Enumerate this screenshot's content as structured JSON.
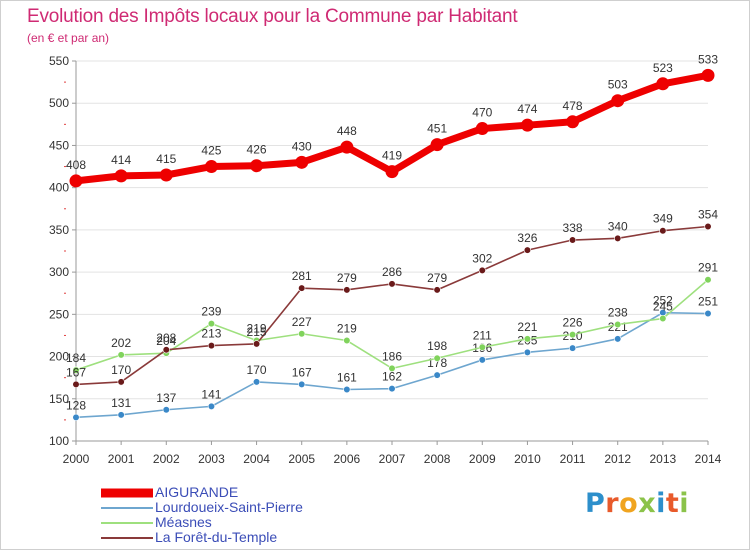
{
  "header": {
    "title": "Evolution des Impôts locaux pour la Commune par Habitant",
    "subtitle": "(en € et par an)"
  },
  "colors": {
    "title": "#cf2a73",
    "axis": "#999999",
    "grid": "#e3e3e3",
    "label": "#333333",
    "legend_text": "#3b4db7"
  },
  "logo": {
    "text": "Proxiti",
    "letters": [
      {
        "char": "P",
        "color": "#2d8fcb"
      },
      {
        "char": "r",
        "color": "#e85a2b"
      },
      {
        "char": "o",
        "color": "#f0a420"
      },
      {
        "char": "x",
        "color": "#8bc34a"
      },
      {
        "char": "i",
        "color": "#2d8fcb"
      },
      {
        "char": "t",
        "color": "#e85a2b"
      },
      {
        "char": "i",
        "color": "#8bc34a"
      }
    ]
  },
  "chart_data": {
    "type": "line",
    "title": "Evolution des Impôts locaux pour la Commune par Habitant",
    "subtitle": "(en € et par an)",
    "xlabel": "",
    "ylabel": "",
    "x": [
      "2000",
      "2001",
      "2002",
      "2003",
      "2004",
      "2005",
      "2006",
      "2007",
      "2008",
      "2009",
      "2010",
      "2011",
      "2012",
      "2013",
      "2014"
    ],
    "ylim": [
      100,
      550
    ],
    "yticks": [
      100,
      150,
      200,
      250,
      300,
      350,
      400,
      450,
      500,
      550
    ],
    "grid": true,
    "legend": "bottom-left",
    "series": [
      {
        "name": "AIGURANDE",
        "color": "#ee0000",
        "marker": "#ee0000",
        "emphasis": "thick",
        "values": [
          408,
          414,
          415,
          425,
          426,
          430,
          448,
          419,
          451,
          470,
          474,
          478,
          503,
          523,
          533
        ]
      },
      {
        "name": "Lourdoueix-Saint-Pierre",
        "color": "#6ea6cf",
        "marker": "#3a88c8",
        "emphasis": "normal",
        "values": [
          128,
          131,
          137,
          141,
          170,
          167,
          161,
          162,
          178,
          196,
          205,
          210,
          221,
          252,
          251
        ]
      },
      {
        "name": "Méasnes",
        "color": "#9ee07e",
        "marker": "#80d35c",
        "emphasis": "normal",
        "values": [
          184,
          202,
          204,
          239,
          219,
          227,
          219,
          186,
          198,
          211,
          221,
          226,
          238,
          245,
          291
        ]
      },
      {
        "name": "La Forêt-du-Temple",
        "color": "#8a3a3a",
        "marker": "#6a1a1a",
        "emphasis": "normal",
        "values": [
          167,
          170,
          208,
          213,
          215,
          281,
          279,
          286,
          279,
          302,
          326,
          338,
          340,
          349,
          354
        ]
      }
    ]
  }
}
